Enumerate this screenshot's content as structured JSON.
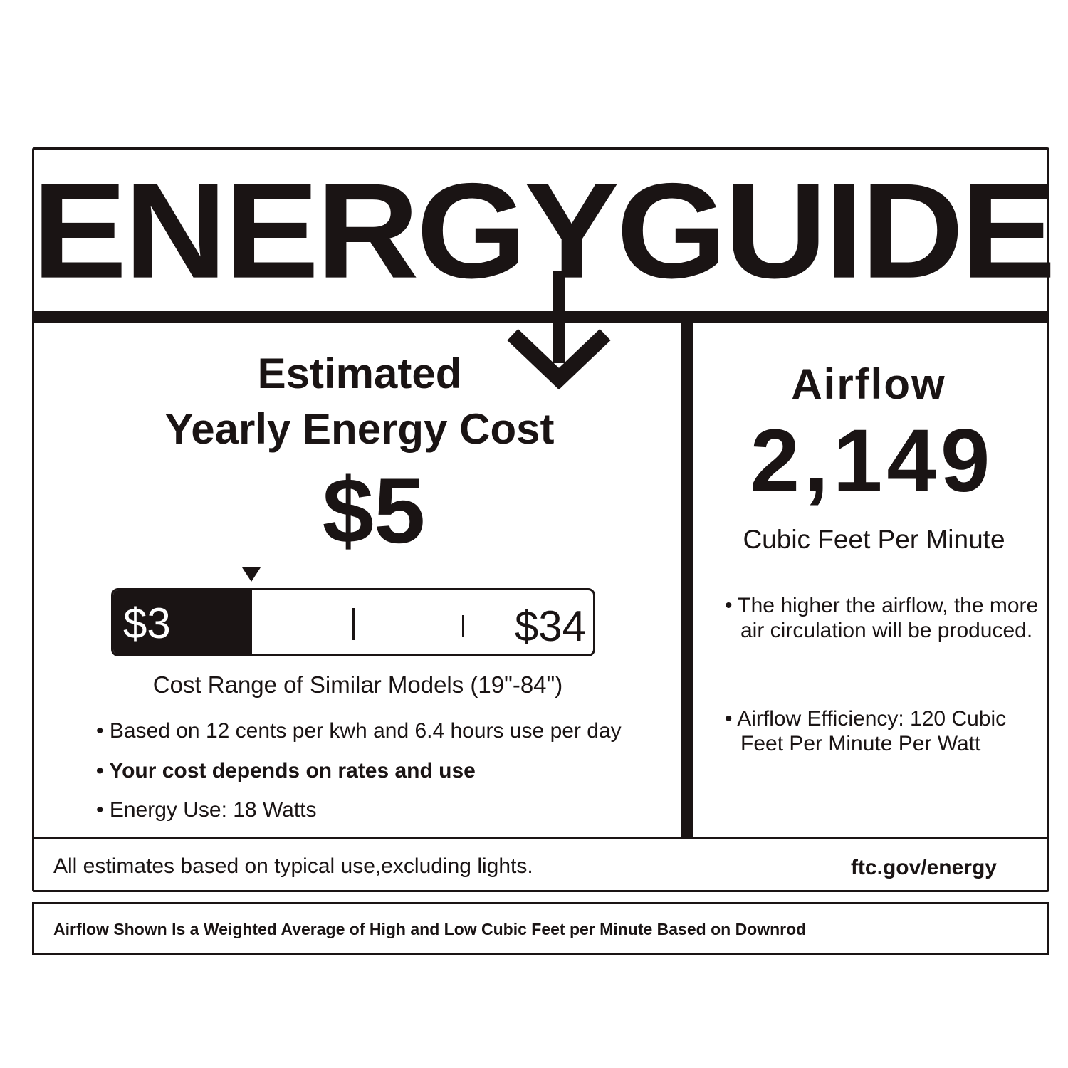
{
  "header": {
    "title": "ENERGYGUIDE"
  },
  "cost": {
    "heading_line1": "Estimated",
    "heading_line2": "Yearly Energy Cost",
    "value": "$5",
    "range_min": "$3",
    "range_max": "$34",
    "marker_position_percent": 29,
    "range_caption": "Cost Range of Similar Models (19\"-84\")",
    "bullets": [
      "Based on 12 cents per kwh and 6.4 hours use per day",
      "Your cost depends on rates and use",
      "Energy Use: 18 Watts"
    ]
  },
  "airflow": {
    "heading": "Airflow",
    "value": "2,149",
    "unit": "Cubic Feet Per Minute",
    "bullets": [
      "The higher the airflow, the more air circulation will be produced.",
      "Airflow Efficiency: 120 Cubic Feet Per Minute Per Watt"
    ]
  },
  "footer": {
    "disclaimer": "All estimates based on typical use,excluding lights.",
    "link": "ftc.gov/energy"
  },
  "note": "Airflow Shown Is a Weighted Average of High and Low Cubic Feet per Minute Based on Downrod",
  "colors": {
    "ink": "#1a1414",
    "background": "#ffffff"
  }
}
